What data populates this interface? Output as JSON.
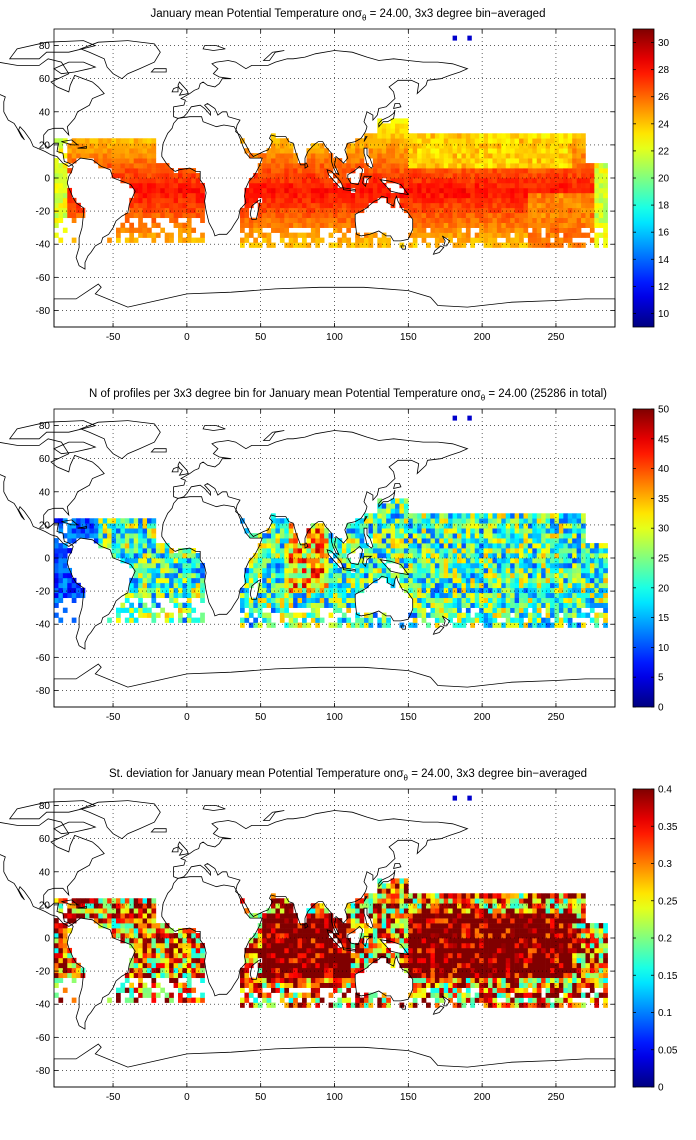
{
  "panels": [
    {
      "title_pre": "January mean Potential Temperature on",
      "title_sym": "σ",
      "title_sub": "θ",
      "title_post": " = 24.00, 3x3 degree bin−averaged",
      "field": "temperature",
      "colorbar": {
        "min": 9,
        "max": 31,
        "ticks": [
          "10",
          "12",
          "14",
          "16",
          "18",
          "20",
          "22",
          "24",
          "26",
          "28",
          "30"
        ],
        "tick_values": [
          10,
          12,
          14,
          16,
          18,
          20,
          22,
          24,
          26,
          28,
          30
        ]
      },
      "x_ticks": [
        "-50",
        "0",
        "50",
        "100",
        "150",
        "200",
        "250"
      ],
      "y_ticks": [
        "80",
        "60",
        "40",
        "20",
        "0",
        "-20",
        "-40",
        "-60",
        "-80"
      ]
    },
    {
      "title_pre": "N of profiles per 3x3 degree bin for January mean Potential Temperature on",
      "title_sym": "σ",
      "title_sub": "θ",
      "title_post": " = 24.00 (25286 in total)",
      "field": "count",
      "colorbar": {
        "min": 0,
        "max": 50,
        "ticks": [
          "0",
          "5",
          "10",
          "15",
          "20",
          "25",
          "30",
          "35",
          "40",
          "45",
          "50"
        ],
        "tick_values": [
          0,
          5,
          10,
          15,
          20,
          25,
          30,
          35,
          40,
          45,
          50
        ]
      },
      "x_ticks": [
        "-50",
        "0",
        "50",
        "100",
        "150",
        "200",
        "250"
      ],
      "y_ticks": [
        "80",
        "60",
        "40",
        "20",
        "0",
        "-20",
        "-40",
        "-60",
        "-80"
      ]
    },
    {
      "title_pre": "St. deviation for January mean Potential Temperature on",
      "title_sym": "σ",
      "title_sub": "θ",
      "title_post": " = 24.00, 3x3 degree bin−averaged",
      "field": "stdev",
      "colorbar": {
        "min": 0,
        "max": 0.4,
        "ticks": [
          "0",
          "0.05",
          "0.1",
          "0.15",
          "0.2",
          "0.25",
          "0.3",
          "0.35",
          "0.4"
        ],
        "tick_values": [
          0,
          0.05,
          0.1,
          0.15,
          0.2,
          0.25,
          0.3,
          0.35,
          0.4
        ]
      },
      "x_ticks": [
        "-50",
        "0",
        "50",
        "100",
        "150",
        "200",
        "250"
      ],
      "y_ticks": [
        "80",
        "60",
        "40",
        "20",
        "0",
        "-20",
        "-40",
        "-60",
        "-80"
      ]
    }
  ],
  "map_extent": {
    "lon": [
      -90,
      290
    ],
    "lat": [
      -90,
      90
    ]
  },
  "grid": "dotted"
}
